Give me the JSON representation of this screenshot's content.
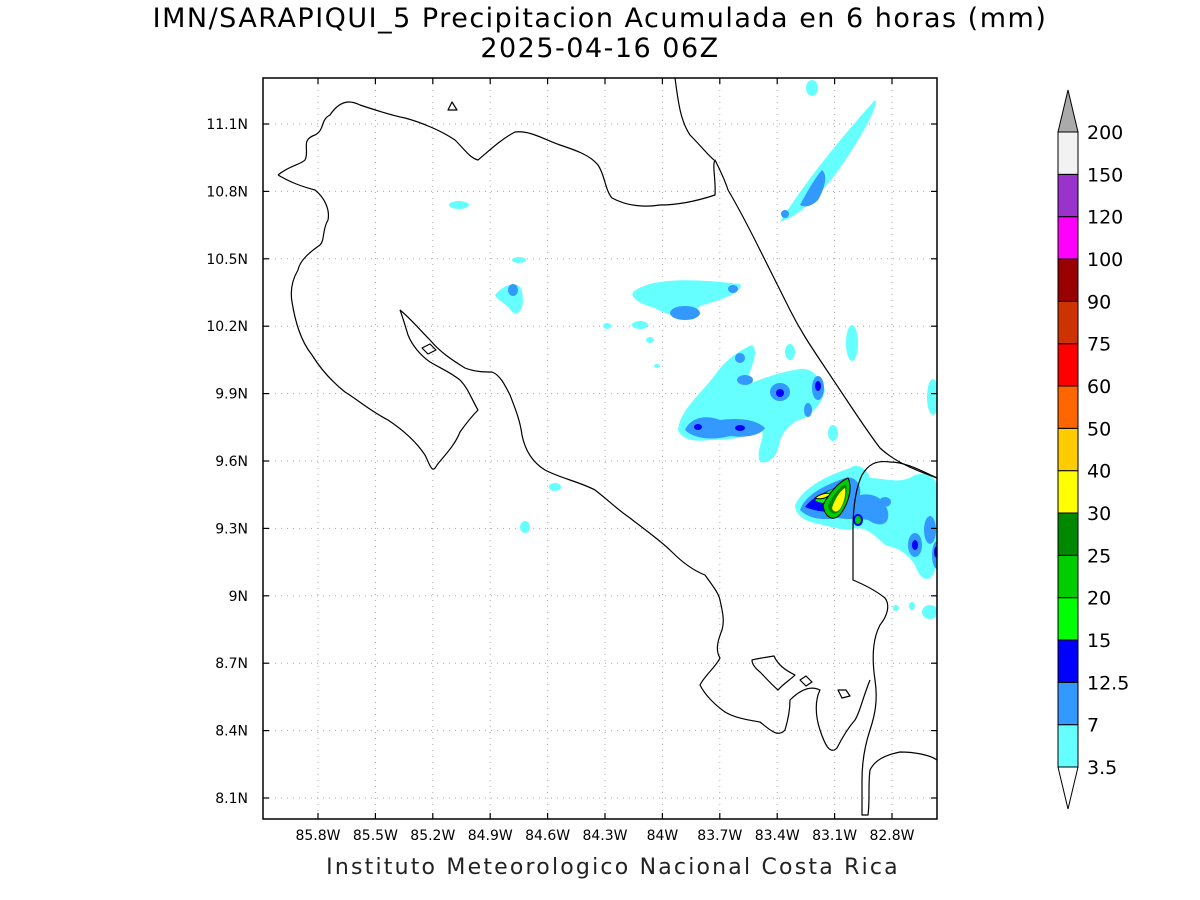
{
  "title": "IMN/SARAPIQUI_5 Precipitacion Acumulada en 6 horas (mm)",
  "subtitle": "2025-04-16 06Z",
  "credit": "Instituto Meteorologico Nacional Costa Rica",
  "map": {
    "lon_range": [
      -86.05,
      -82.67
    ],
    "lat_range": [
      8.0,
      11.3
    ],
    "lon_ticks": [
      "85.8W",
      "85.5W",
      "85.2W",
      "84.9W",
      "84.6W",
      "84.3W",
      "84W",
      "83.7W",
      "83.4W",
      "83.1W",
      "82.8W"
    ],
    "lat_ticks": [
      "11.1N",
      "10.8N",
      "10.5N",
      "10.2N",
      "9.9N",
      "9.6N",
      "9.3N",
      "9N",
      "8.7N",
      "8.4N",
      "8.1N"
    ],
    "grid": "dotted"
  },
  "colorbar": {
    "levels": [
      "3.5",
      "7",
      "12.5",
      "15",
      "20",
      "25",
      "30",
      "40",
      "50",
      "60",
      "75",
      "90",
      "100",
      "120",
      "150",
      "200"
    ],
    "colors": [
      "#66ffff",
      "#3399ff",
      "#0000ff",
      "#00ff00",
      "#00cc00",
      "#008800",
      "#ffff00",
      "#ffcc00",
      "#ff6600",
      "#ff0000",
      "#cc3300",
      "#990000",
      "#ff00ff",
      "#9933cc",
      "#f2f2f2"
    ],
    "over_color": "#aaaaaa",
    "under_color": "#ffffff"
  }
}
